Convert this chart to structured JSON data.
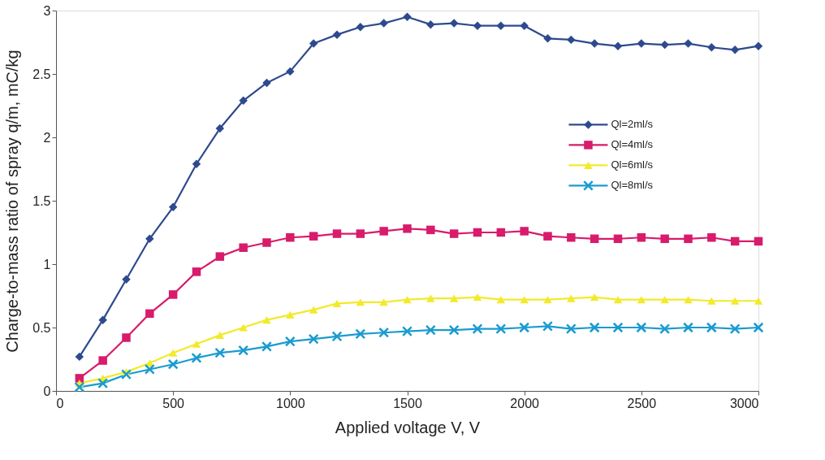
{
  "chart_data": {
    "type": "line",
    "xlabel": "Applied voltage V, V",
    "ylabel": "Charge-to-mass ratio of spray q/m, mC/kg",
    "x": [
      100,
      200,
      300,
      400,
      500,
      600,
      700,
      800,
      900,
      1000,
      1100,
      1200,
      1300,
      1400,
      1500,
      1600,
      1700,
      1800,
      1900,
      2000,
      2100,
      2200,
      2300,
      2400,
      2500,
      2600,
      2700,
      2800,
      2900,
      3000
    ],
    "xlim": [
      0,
      3000
    ],
    "xticks": [
      0,
      500,
      1000,
      1500,
      2000,
      2500,
      3000
    ],
    "ylim": [
      0,
      3
    ],
    "yticks": [
      0,
      0.5,
      1,
      1.5,
      2,
      2.5,
      3
    ],
    "grid": false,
    "legend": "right",
    "line_style": "solid",
    "series": [
      {
        "name": "Ql=2ml/s",
        "color": "#2e4a8e",
        "marker": "diamond",
        "values": [
          0.27,
          0.56,
          0.88,
          1.2,
          1.45,
          1.79,
          2.07,
          2.29,
          2.43,
          2.52,
          2.74,
          2.81,
          2.87,
          2.9,
          2.95,
          2.89,
          2.9,
          2.88,
          2.88,
          2.88,
          2.78,
          2.77,
          2.74,
          2.72,
          2.74,
          2.73,
          2.74,
          2.71,
          2.69,
          2.72
        ]
      },
      {
        "name": "Ql=4ml/s",
        "color": "#d81b6a",
        "marker": "square",
        "values": [
          0.1,
          0.24,
          0.42,
          0.61,
          0.76,
          0.94,
          1.06,
          1.13,
          1.17,
          1.21,
          1.22,
          1.24,
          1.24,
          1.26,
          1.28,
          1.27,
          1.24,
          1.25,
          1.25,
          1.26,
          1.22,
          1.21,
          1.2,
          1.2,
          1.21,
          1.2,
          1.2,
          1.21,
          1.18,
          1.18
        ]
      },
      {
        "name": "Ql=6ml/s",
        "color": "#f2ea2a",
        "marker": "triangle",
        "values": [
          0.06,
          0.1,
          0.15,
          0.22,
          0.3,
          0.37,
          0.44,
          0.5,
          0.56,
          0.6,
          0.64,
          0.69,
          0.7,
          0.7,
          0.72,
          0.73,
          0.73,
          0.74,
          0.72,
          0.72,
          0.72,
          0.73,
          0.74,
          0.72,
          0.72,
          0.72,
          0.72,
          0.71,
          0.71,
          0.71
        ]
      },
      {
        "name": "Ql=8ml/s",
        "color": "#1a9bd0",
        "marker": "cross",
        "values": [
          0.03,
          0.06,
          0.13,
          0.17,
          0.21,
          0.26,
          0.3,
          0.32,
          0.35,
          0.39,
          0.41,
          0.43,
          0.45,
          0.46,
          0.47,
          0.48,
          0.48,
          0.49,
          0.49,
          0.5,
          0.51,
          0.49,
          0.5,
          0.5,
          0.5,
          0.49,
          0.5,
          0.5,
          0.49,
          0.5
        ]
      }
    ]
  }
}
